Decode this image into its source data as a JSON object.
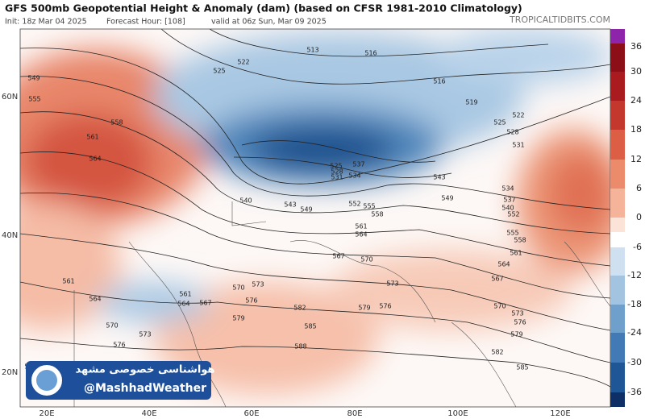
{
  "header": {
    "title": "GFS 500mb Geopotential Height & Anomaly (dam) (based on CFSR 1981-2010 Climatology)",
    "init": "Init: 18z Mar 04 2025",
    "forecast_hour": "Forecast Hour: [108]",
    "valid": "valid at 06z Sun, Mar 09 2025",
    "site": "TROPICALTIDBITS.COM"
  },
  "map": {
    "lat_labels": [
      "60N",
      "40N",
      "20N"
    ],
    "lon_labels": [
      "20E",
      "40E",
      "60E",
      "80E",
      "100E",
      "120E"
    ],
    "contour_labels": [
      513,
      516,
      516,
      519,
      522,
      525,
      522,
      525,
      528,
      531,
      534,
      537,
      540,
      543,
      549,
      552,
      555,
      558,
      561,
      564,
      567,
      570,
      573,
      576,
      579,
      582,
      585,
      549,
      555,
      558,
      561,
      564,
      561,
      564,
      570,
      573,
      576,
      585,
      570,
      573,
      576,
      579,
      582,
      585,
      588,
      570,
      573,
      576,
      579,
      561,
      564,
      567,
      558,
      555,
      552,
      549,
      543,
      540,
      525,
      528,
      531,
      534,
      537,
      561,
      564,
      567
    ]
  },
  "colorbar": {
    "ticks": [
      36,
      30,
      24,
      18,
      12,
      6,
      0,
      -6,
      -12,
      -18,
      -24,
      -30,
      -36
    ]
  },
  "watermark": {
    "name": "هواشناسی خصوصی مشهد",
    "handle": "@MashhadWeather"
  }
}
